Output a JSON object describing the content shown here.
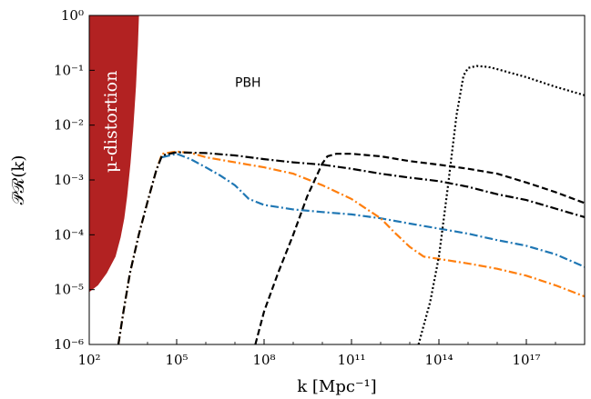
{
  "chart_data": {
    "type": "line",
    "xlabel": "k [Mpc⁻¹]",
    "ylabel": "𝒫ℛ(k)",
    "x_scale": "log",
    "y_scale": "log",
    "xlim": [
      100,
      1e+19
    ],
    "ylim": [
      1e-06,
      1
    ],
    "grid": false,
    "x_ticks": [
      {
        "value": 100,
        "label": "10²"
      },
      {
        "value": 100000,
        "label": "10⁵"
      },
      {
        "value": 100000000.0,
        "label": "10⁸"
      },
      {
        "value": 100000000000.0,
        "label": "10¹¹"
      },
      {
        "value": 100000000000000.0,
        "label": "10¹⁴"
      },
      {
        "value": 1e+17,
        "label": "10¹⁷"
      }
    ],
    "y_ticks": [
      {
        "value": 1e-06,
        "label": "10⁻⁶"
      },
      {
        "value": 1e-05,
        "label": "10⁻⁵"
      },
      {
        "value": 0.0001,
        "label": "10⁻⁴"
      },
      {
        "value": 0.001,
        "label": "10⁻³"
      },
      {
        "value": 0.01,
        "label": "10⁻²"
      },
      {
        "value": 0.1,
        "label": "10⁻¹"
      },
      {
        "value": 1,
        "label": "10⁰"
      }
    ],
    "shaded_region": {
      "label": "μ-distortion",
      "color": "#b22222",
      "lower_boundary": [
        [
          100,
          9e-06
        ],
        [
          200,
          1.2e-05
        ],
        [
          400,
          2e-05
        ],
        [
          800,
          4e-05
        ],
        [
          1200,
          9e-05
        ],
        [
          1600,
          0.0002
        ],
        [
          2000,
          0.0005
        ],
        [
          2600,
          0.002
        ],
        [
          3200,
          0.008
        ],
        [
          4000,
          0.05
        ],
        [
          4700,
          0.3
        ],
        [
          5100,
          1
        ]
      ]
    },
    "annotations": [
      {
        "text": "PBH",
        "x": 10000000.0,
        "y": 0.05
      }
    ],
    "series": [
      {
        "style": "dashdot",
        "color": "#1f77b4",
        "points": [
          [
            31600,
            0.0026
          ],
          [
            100000,
            0.003
          ],
          [
            300000,
            0.0024
          ],
          [
            1000000,
            0.0017
          ],
          [
            3160000,
            0.0012
          ],
          [
            10000000.0,
            0.0008
          ],
          [
            30000000.0,
            0.00045
          ],
          [
            100000000.0,
            0.00035
          ],
          [
            1000000000.0,
            0.00029
          ],
          [
            10000000000.0,
            0.00026
          ],
          [
            100000000000.0,
            0.000235
          ],
          [
            1000000000000.0,
            0.0002
          ],
          [
            10000000000000.0,
            0.00016
          ],
          [
            100000000000000.0,
            0.00013
          ],
          [
            1000000000000000.0,
            0.000105
          ],
          [
            1e+16,
            8e-05
          ],
          [
            1e+17,
            6.3e-05
          ],
          [
            1e+18,
            4.4e-05
          ],
          [
            1e+19,
            2.6e-05
          ]
        ]
      },
      {
        "style": "dashdot",
        "color": "#ff7f0e",
        "points": [
          [
            1000,
            1e-06
          ],
          [
            1500,
            4e-06
          ],
          [
            2500,
            2e-05
          ],
          [
            5000,
            0.0001
          ],
          [
            10000,
            0.0004
          ],
          [
            20000,
            0.0015
          ],
          [
            31600,
            0.003
          ],
          [
            100000,
            0.0033
          ],
          [
            316000,
            0.0031
          ],
          [
            1000000,
            0.0026
          ],
          [
            10000000.0,
            0.0021
          ],
          [
            100000000.0,
            0.0017
          ],
          [
            1000000000.0,
            0.0013
          ],
          [
            10000000000.0,
            0.0008
          ],
          [
            100000000000.0,
            0.00045
          ],
          [
            1000000000000.0,
            0.0002
          ],
          [
            3000000000000.0,
            0.00011
          ],
          [
            10000000000000.0,
            6e-05
          ],
          [
            30000000000000.0,
            4e-05
          ],
          [
            1000000000000000.0,
            3e-05
          ],
          [
            1e+16,
            2.4e-05
          ],
          [
            1e+17,
            1.8e-05
          ],
          [
            1e+18,
            1.2e-05
          ],
          [
            1e+19,
            7.5e-06
          ]
        ]
      },
      {
        "style": "dashdot",
        "color": "#000000",
        "points": [
          [
            1000,
            1e-06
          ],
          [
            1500,
            4e-06
          ],
          [
            2500,
            2e-05
          ],
          [
            5000,
            0.0001
          ],
          [
            10000,
            0.0004
          ],
          [
            20000,
            0.0015
          ],
          [
            31600,
            0.0028
          ],
          [
            100000,
            0.0032
          ],
          [
            1000000,
            0.0031
          ],
          [
            10000000.0,
            0.0028
          ],
          [
            100000000.0,
            0.0024
          ],
          [
            1000000000.0,
            0.0021
          ],
          [
            10000000000.0,
            0.0019
          ],
          [
            100000000000.0,
            0.0016
          ],
          [
            1000000000000.0,
            0.0013
          ],
          [
            10000000000000.0,
            0.0011
          ],
          [
            100000000000000.0,
            0.00095
          ],
          [
            1000000000000000.0,
            0.00075
          ],
          [
            1e+16,
            0.00055
          ],
          [
            1e+17,
            0.00043
          ],
          [
            1e+18,
            0.0003
          ],
          [
            1e+19,
            0.00021
          ]
        ]
      },
      {
        "style": "dashed",
        "color": "#000000",
        "points": [
          [
            50000000.0,
            1e-06
          ],
          [
            100000000.0,
            4e-06
          ],
          [
            300000000.0,
            2e-05
          ],
          [
            1000000000.0,
            0.0001
          ],
          [
            3000000000.0,
            0.0005
          ],
          [
            10000000000.0,
            0.002
          ],
          [
            15000000000.0,
            0.0027
          ],
          [
            30000000000.0,
            0.003
          ],
          [
            100000000000.0,
            0.003
          ],
          [
            1000000000000.0,
            0.0027
          ],
          [
            10000000000000.0,
            0.0022
          ],
          [
            100000000000000.0,
            0.0019
          ],
          [
            1000000000000000.0,
            0.0016
          ],
          [
            1e+16,
            0.0013
          ],
          [
            1e+17,
            0.0009
          ],
          [
            1e+18,
            0.0006
          ],
          [
            1e+19,
            0.00038
          ]
        ]
      },
      {
        "style": "dotted",
        "color": "#000000",
        "points": [
          [
            20000000000000.0,
            1e-06
          ],
          [
            50000000000000.0,
            6e-06
          ],
          [
            100000000000000.0,
            4e-05
          ],
          [
            200000000000000.0,
            0.0007
          ],
          [
            400000000000000.0,
            0.015
          ],
          [
            700000000000000.0,
            0.08
          ],
          [
            1000000000000000.0,
            0.11
          ],
          [
            2000000000000000.0,
            0.12
          ],
          [
            5000000000000000.0,
            0.115
          ],
          [
            1e+16,
            0.105
          ],
          [
            1e+17,
            0.075
          ],
          [
            1e+18,
            0.05
          ],
          [
            1e+19,
            0.035
          ]
        ]
      }
    ]
  }
}
